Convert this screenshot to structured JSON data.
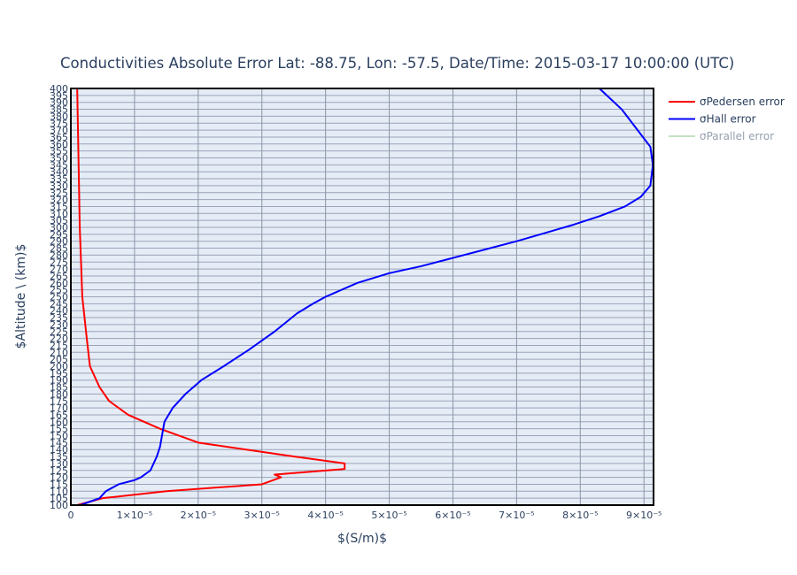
{
  "chart_data": {
    "type": "line",
    "title": "Conductivities Absolute Error Lat: -88.75, Lon: -57.5, Date/Time: 2015-03-17 10:00:00 (UTC)",
    "xlabel": "$(S/m)$",
    "ylabel": "$Altitude \\ (km)$",
    "xlim": [
      0,
      9.15e-05
    ],
    "ylim": [
      100,
      400
    ],
    "x_tick_values": [
      0,
      1e-05,
      2e-05,
      3e-05,
      4e-05,
      5e-05,
      6e-05,
      7e-05,
      8e-05,
      9e-05
    ],
    "x_tick_labels": [
      "0",
      "1×10⁻⁵",
      "2×10⁻⁵",
      "3×10⁻⁵",
      "4×10⁻⁵",
      "5×10⁻⁵",
      "6×10⁻⁵",
      "7×10⁻⁵",
      "8×10⁻⁵",
      "9×10⁻⁵"
    ],
    "y_tick_start": 100,
    "y_tick_end": 400,
    "y_tick_step": 5,
    "grid": true,
    "legend_position": "top-right",
    "series": [
      {
        "name": "σPedersen error",
        "color": "#ff0000",
        "visible": true,
        "x": [
          1e-06,
          5e-06,
          1.5e-05,
          3e-05,
          3.3e-05,
          3.2e-05,
          4.3e-05,
          4.3e-05,
          3.5e-05,
          2e-05,
          1.4e-05,
          9e-06,
          6e-06,
          4.5e-06,
          3e-06,
          2.5e-06,
          1.8e-06,
          1.4e-06,
          1.2e-06,
          1e-06
        ],
        "y": [
          100,
          105,
          110,
          115,
          120,
          122,
          126,
          130,
          135,
          145,
          155,
          165,
          175,
          185,
          200,
          220,
          250,
          300,
          350,
          400
        ]
      },
      {
        "name": "σHall error",
        "color": "#0000ff",
        "visible": true,
        "x": [
          1.5e-06,
          4.5e-06,
          5.5e-06,
          7.5e-06,
          1e-05,
          1.1e-05,
          1.25e-05,
          1.35e-05,
          1.4e-05,
          1.47e-05,
          1.6e-05,
          1.8e-05,
          2.05e-05,
          2.4e-05,
          2.8e-05,
          3.2e-05,
          3.55e-05,
          3.8e-05,
          4e-05,
          4.5e-05,
          5e-05,
          5.5e-05,
          6e-05,
          6.5e-05,
          7e-05,
          7.45e-05,
          7.9e-05,
          8.3e-05,
          8.7e-05,
          8.95e-05,
          9.1e-05,
          9.14e-05,
          9.1e-05,
          8.9e-05,
          8.65e-05,
          8.3e-05
        ],
        "y": [
          100,
          105,
          110,
          115,
          118,
          120,
          125,
          135,
          142,
          160,
          170,
          180,
          190,
          200,
          212,
          225,
          238,
          245,
          250,
          260,
          267,
          272,
          278,
          284,
          290,
          296,
          302,
          308,
          315,
          322,
          330,
          345,
          358,
          370,
          385,
          400
        ]
      },
      {
        "name": "σParallel error",
        "color": "#88c688",
        "visible": false,
        "x": [],
        "y": []
      }
    ]
  }
}
